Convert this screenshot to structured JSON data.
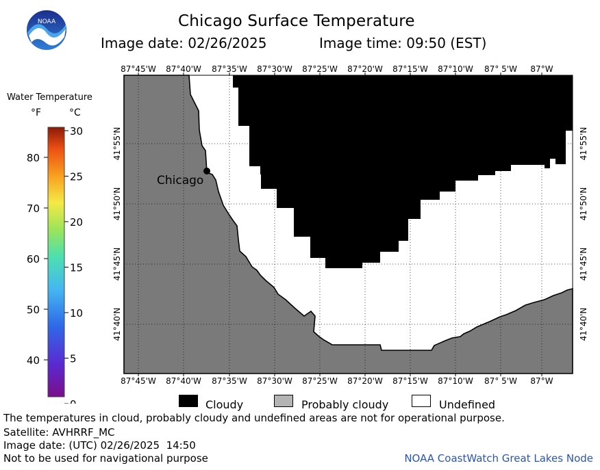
{
  "title": "Chicago Surface Temperature",
  "image_date_label": "Image date: 02/26/2025",
  "image_time_label": "Image time: 09:50 (EST)",
  "logo_text": "NOAA",
  "colorbar": {
    "title": "Water Temperature",
    "unit_f": "°F",
    "unit_c": "°C",
    "f_ticks": [
      "80",
      "70",
      "60",
      "50",
      "40"
    ],
    "c_ticks": [
      "30",
      "25",
      "20",
      "15",
      "10",
      "5",
      "0"
    ]
  },
  "map": {
    "longitude_labels": [
      "87°45'W",
      "87°40'W",
      "87°35'W",
      "87°30'W",
      "87°25'W",
      "87°20'W",
      "87°15'W",
      "87°10'W",
      "87° 5'W",
      "87°W"
    ],
    "latitude_labels": [
      "41°55'N",
      "41°50'N",
      "41°45'N",
      "41°40'N"
    ],
    "city_label": "Chicago",
    "colors": {
      "land": "#7a7a7a",
      "cloudy": "#000000",
      "undefined": "#ffffff",
      "probably_cloudy": "#b4b4b4"
    }
  },
  "legend": {
    "cloudy": "Cloudy",
    "probably_cloudy": "Probably cloudy",
    "undefined": "Undefined"
  },
  "footer": {
    "disclaimer": "The temperatures in cloud, probably cloudy and undefined areas are not for operational purpose.",
    "satellite": "Satellite: AVHRRF_MC",
    "utc_date": "Image date: (UTC) 02/26/2025  14:50",
    "navigation": "Not to be used for navigational purpose",
    "credit": "NOAA CoastWatch Great Lakes Node"
  }
}
